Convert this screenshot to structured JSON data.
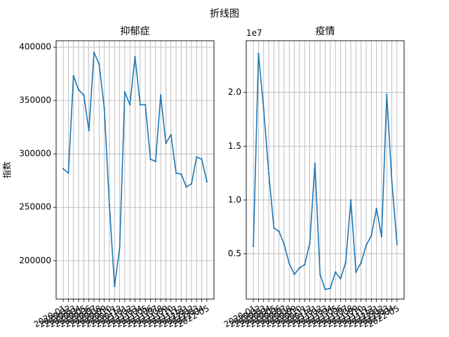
{
  "figure": {
    "suptitle": "折线图"
  },
  "chart_data": [
    {
      "type": "line",
      "title": "抑郁症",
      "xlabel": "",
      "ylabel": "指数",
      "x_tick_labels": [
        "2020-01",
        "2020-02",
        "2020-03",
        "2020-04",
        "2020-05",
        "2020-06",
        "2020-07",
        "2020-08",
        "2020-09",
        "2020-10",
        "2020-11",
        "2020-12",
        "2021-01",
        "2021-02",
        "2021-03",
        "2021-04",
        "2021-05",
        "2021-06",
        "2021-07",
        "2021-08",
        "2021-09",
        "2021-10",
        "2021-11",
        "2021-12",
        "2022-01",
        "2022-02",
        "2022-03",
        "2022-04",
        "2022-05"
      ],
      "x_tick_rotation_deg": 30,
      "y_ticks": [
        200000,
        250000,
        300000,
        350000,
        400000
      ],
      "ylim": [
        164000,
        406000
      ],
      "grid": true,
      "color": "#1f77b4",
      "values": [
        286000,
        282000,
        373000,
        360000,
        355000,
        322000,
        395000,
        384000,
        343000,
        252000,
        176000,
        212000,
        358000,
        346000,
        391000,
        346000,
        346000,
        295000,
        293000,
        355000,
        310000,
        318000,
        282000,
        281000,
        269000,
        272000,
        297000,
        295000,
        274000
      ]
    },
    {
      "type": "line",
      "title": "疫情",
      "xlabel": "",
      "ylabel": "",
      "scale_label": "1e7",
      "x_tick_labels": [
        "2020-01",
        "2020-02",
        "2020-03",
        "2020-04",
        "2020-05",
        "2020-06",
        "2020-07",
        "2020-08",
        "2020-09",
        "2020-10",
        "2020-11",
        "2020-12",
        "2021-01",
        "2021-02",
        "2021-03",
        "2021-04",
        "2021-05",
        "2021-06",
        "2021-07",
        "2021-08",
        "2021-09",
        "2021-10",
        "2021-11",
        "2021-12",
        "2022-01",
        "2022-02",
        "2022-03",
        "2022-04",
        "2022-05"
      ],
      "x_tick_rotation_deg": 30,
      "y_ticks": [
        0.5,
        1.0,
        1.5,
        2.0
      ],
      "y_tick_labels": [
        "0.5",
        "1.0",
        "1.5",
        "2.0"
      ],
      "ylim": [
        0.08,
        2.48
      ],
      "grid": true,
      "color": "#1f77b4",
      "values": [
        0.57,
        2.36,
        1.85,
        1.25,
        0.74,
        0.71,
        0.59,
        0.41,
        0.31,
        0.37,
        0.4,
        0.6,
        1.34,
        0.31,
        0.17,
        0.18,
        0.33,
        0.27,
        0.42,
        1.0,
        0.33,
        0.42,
        0.58,
        0.67,
        0.92,
        0.66,
        1.98,
        1.17,
        0.59
      ]
    }
  ]
}
